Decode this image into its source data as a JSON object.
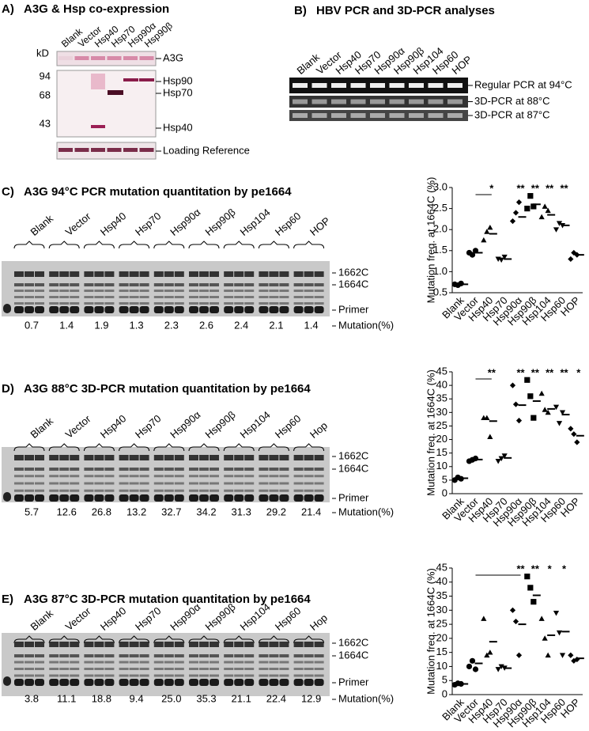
{
  "panel_a": {
    "label": "A)",
    "title": "A3G & Hsp co-expression",
    "lanes": [
      "Blank",
      "Vector",
      "Hsp40",
      "Hsp70",
      "Hsp90α",
      "Hsp90β"
    ],
    "kd_label": "kD",
    "markers": [
      94,
      68,
      43
    ],
    "band_labels": [
      "A3G",
      "Hsp90",
      "Hsp70",
      "Hsp40",
      "Loading Reference"
    ]
  },
  "panel_b": {
    "label": "B)",
    "title": "HBV PCR and 3D-PCR analyses",
    "lanes": [
      "Blank",
      "Vector",
      "Hsp40",
      "Hsp70",
      "Hsp90α",
      "Hsp90β",
      "Hsp104",
      "Hsp60",
      "HOP"
    ],
    "rows": [
      "Regular PCR at 94°C",
      "3D-PCR at 88°C",
      "3D-PCR at 87°C"
    ]
  },
  "gels": [
    {
      "label": "C)",
      "title": "A3G 94°C PCR mutation quantitation by pe1664",
      "lanes": [
        "Blank",
        "Vector",
        "Hsp40",
        "Hsp70",
        "Hsp90α",
        "Hsp90β",
        "Hsp104",
        "Hsp60",
        "HOP"
      ],
      "band_labels": [
        "1662C",
        "1664C",
        "Primer"
      ],
      "mutation_label": "Mutation(%)",
      "mutation_values": [
        "0.7",
        "1.4",
        "1.9",
        "1.3",
        "2.3",
        "2.6",
        "2.4",
        "2.1",
        "1.4"
      ]
    },
    {
      "label": "D)",
      "title": "A3G 88°C 3D-PCR mutation quantitation by pe1664",
      "lanes": [
        "Blank",
        "Vector",
        "Hsp40",
        "Hsp70",
        "Hsp90α",
        "Hsp90β",
        "Hsp104",
        "Hsp60",
        "Hop"
      ],
      "band_labels": [
        "1662C",
        "1664C",
        "Primer"
      ],
      "mutation_label": "Mutation(%)",
      "mutation_values": [
        "5.7",
        "12.6",
        "26.8",
        "13.2",
        "32.7",
        "34.2",
        "31.3",
        "29.2",
        "21.4"
      ]
    },
    {
      "label": "E)",
      "title": "A3G 87°C 3D-PCR mutation quantitation by pe1664",
      "lanes": [
        "Blank",
        "Vector",
        "Hsp40",
        "Hsp70",
        "Hsp90α",
        "Hsp90β",
        "Hsp104",
        "Hsp60",
        "Hop"
      ],
      "band_labels": [
        "1662C",
        "1664C",
        "Primer"
      ],
      "mutation_label": "Mutation(%)",
      "mutation_values": [
        "3.8",
        "11.1",
        "18.8",
        "9.4",
        "25.0",
        "35.3",
        "21.1",
        "22.4",
        "12.9"
      ]
    }
  ],
  "chart_data": [
    {
      "type": "dotplot",
      "y_label": "Mutation freq. at 1664C (%)",
      "categories": [
        "Blank",
        "Vector",
        "Hsp40",
        "Hsp70",
        "Hsp90α",
        "Hsp90β",
        "Hsp104",
        "Hsp60",
        "HOP"
      ],
      "markers": [
        "circle",
        "circle",
        "triangle",
        "triangle-down",
        "diamond",
        "square",
        "triangle",
        "triangle-down",
        "diamond"
      ],
      "color": "#000000",
      "ylim": [
        0.5,
        3.0
      ],
      "yticks": [
        0.5,
        {
          "value": 1,
          "label": "1.0"
        },
        1.5,
        {
          "value": 2,
          "label": "2.0"
        },
        2.5,
        {
          "value": 3,
          "label": "3.0"
        }
      ],
      "points": [
        [
          0.7,
          0.68,
          0.72
        ],
        [
          1.45,
          1.4,
          1.5
        ],
        [
          1.75,
          1.95,
          2.05
        ],
        [
          1.3,
          1.28,
          1.35
        ],
        [
          2.2,
          2.4,
          2.65
        ],
        [
          2.5,
          2.8,
          2.55
        ],
        [
          2.3,
          2.55,
          2.45
        ],
        [
          2.0,
          2.15,
          2.1
        ],
        [
          1.3,
          1.45,
          1.4
        ]
      ],
      "means": [
        0.7,
        1.45,
        1.9,
        1.3,
        2.3,
        2.6,
        2.35,
        2.1,
        1.4
      ],
      "significance": [
        null,
        null,
        "*",
        null,
        "**",
        "**",
        "**",
        "**",
        null
      ]
    },
    {
      "type": "dotplot",
      "y_label": "Mutation freq. at 1664C (%)",
      "categories": [
        "Blank",
        "Vector",
        "Hsp40",
        "Hsp70",
        "Hsp90α",
        "Hsp90β",
        "Hsp104",
        "Hsp60",
        "HOP"
      ],
      "markers": [
        "circle",
        "circle",
        "triangle",
        "triangle-down",
        "diamond",
        "square",
        "triangle",
        "triangle-down",
        "diamond"
      ],
      "color": "#000000",
      "ylim": [
        0,
        45
      ],
      "yticks": [
        0,
        5,
        10,
        15,
        20,
        25,
        30,
        35,
        40,
        45
      ],
      "points": [
        [
          5,
          6,
          5.5
        ],
        [
          12,
          12.5,
          13
        ],
        [
          28,
          28,
          21
        ],
        [
          12,
          13,
          14
        ],
        [
          40,
          33,
          27
        ],
        [
          42,
          36,
          28
        ],
        [
          37,
          31,
          30
        ],
        [
          32,
          26,
          30
        ],
        [
          24,
          22,
          19
        ]
      ],
      "means": [
        5.7,
        12.6,
        26.8,
        13.2,
        32.7,
        34.2,
        31.3,
        29.2,
        21.4
      ],
      "significance": [
        null,
        null,
        "**",
        null,
        "**",
        "**",
        "**",
        "**",
        "*"
      ]
    },
    {
      "type": "dotplot",
      "y_label": "Mutation freq. at 1664C (%)",
      "categories": [
        "Blank",
        "Vector",
        "Hsp40",
        "Hsp70",
        "Hsp90α",
        "Hsp90β",
        "Hsp104",
        "Hsp60",
        "HOP"
      ],
      "markers": [
        "circle",
        "circle",
        "triangle",
        "triangle-down",
        "diamond",
        "square",
        "triangle",
        "triangle-down",
        "diamond"
      ],
      "color": "#000000",
      "ylim": [
        0,
        45
      ],
      "yticks": [
        0,
        5,
        10,
        15,
        20,
        25,
        30,
        35,
        40,
        45
      ],
      "points": [
        [
          3.5,
          4,
          3.8
        ],
        [
          10,
          12,
          9
        ],
        [
          27,
          14,
          15
        ],
        [
          9,
          10,
          9.5
        ],
        [
          30,
          26,
          14
        ],
        [
          42,
          38,
          33
        ],
        [
          27,
          20,
          14
        ],
        [
          29,
          22,
          14
        ],
        [
          14,
          12,
          12.5
        ]
      ],
      "means": [
        3.8,
        11.1,
        18.8,
        9.4,
        25.0,
        35.3,
        21.1,
        22.4,
        12.9
      ],
      "significance": [
        null,
        null,
        null,
        null,
        "**",
        "**",
        "*",
        "*",
        null
      ]
    }
  ]
}
